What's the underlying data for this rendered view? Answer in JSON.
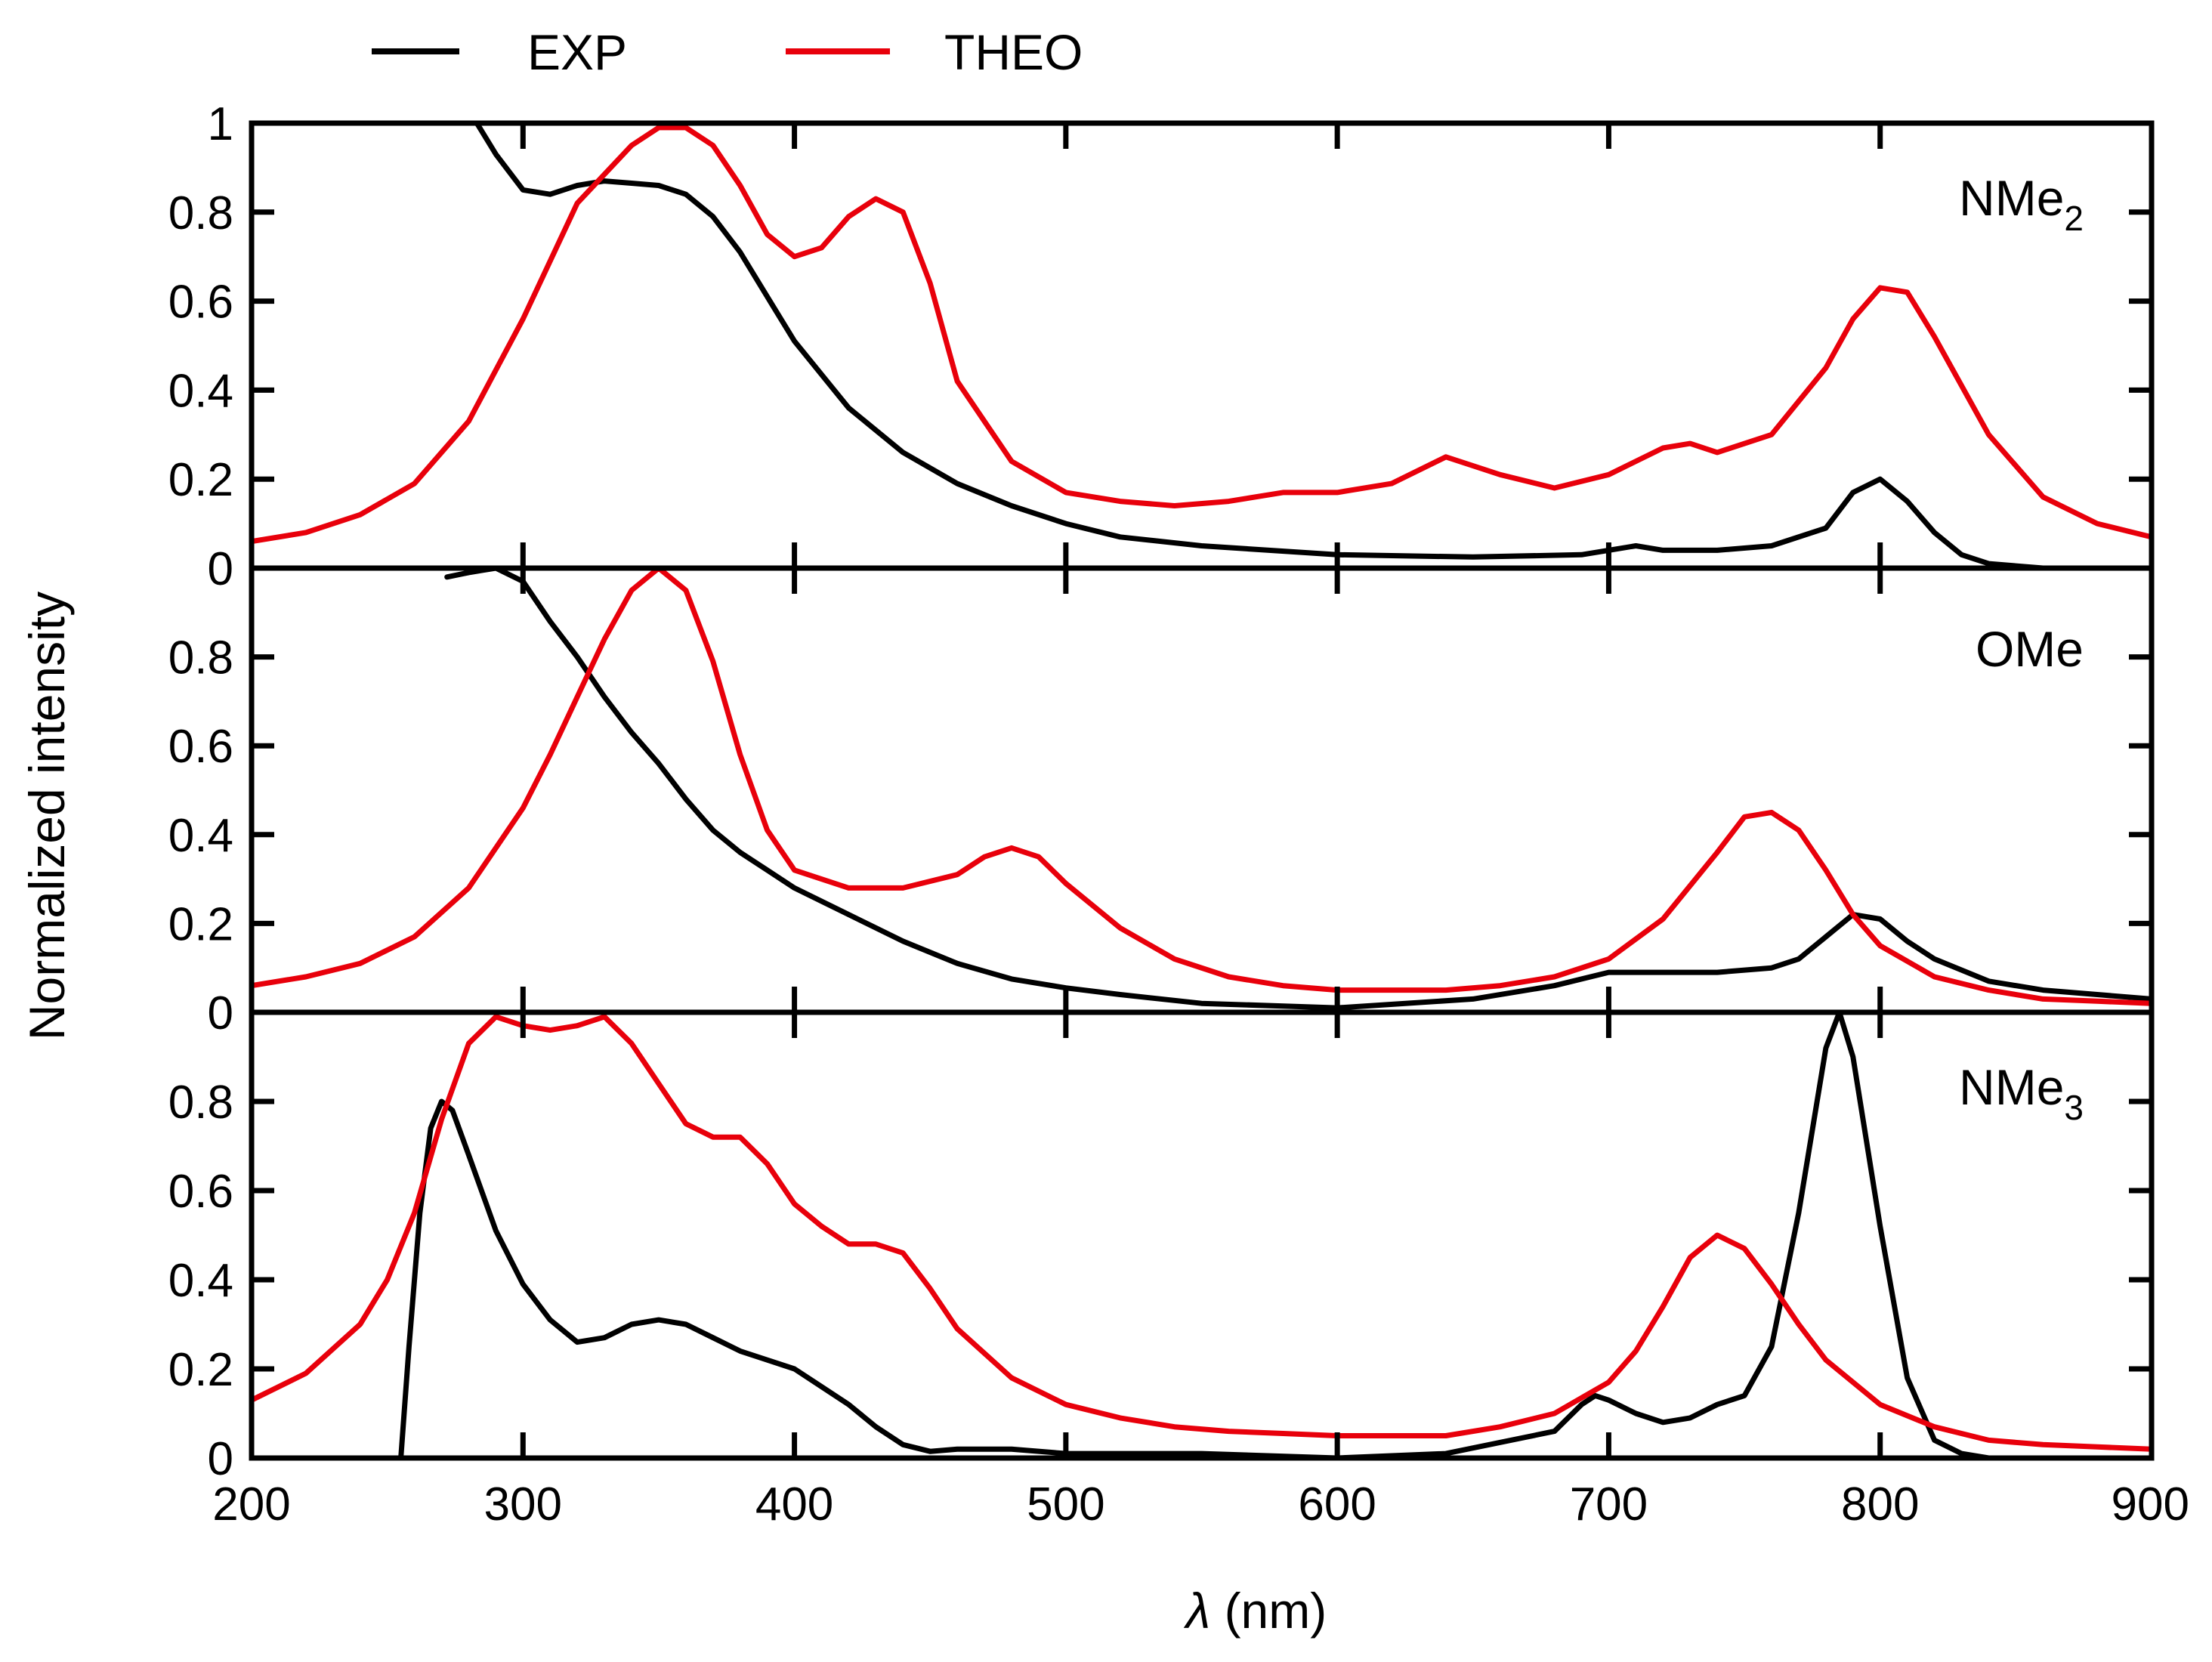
{
  "chart_data": {
    "type": "line",
    "title": "",
    "xlabel": "λ (nm)",
    "xlabel_symbol": "λ",
    "xlabel_unit": "(nm)",
    "ylabel": "Normalized intensity",
    "xlim": [
      200,
      900
    ],
    "x_ticks": [
      200,
      300,
      400,
      500,
      600,
      700,
      800,
      900
    ],
    "x_tick_labels": [
      "200",
      "300",
      "400",
      "500",
      "600",
      "700",
      "800",
      "900"
    ],
    "ylim": [
      0,
      1
    ],
    "grid": false,
    "legend_position": "top",
    "legend": [
      {
        "name": "EXP",
        "color": "#000000"
      },
      {
        "name": "THEO",
        "color": "#e8000b"
      }
    ],
    "panels": [
      {
        "label": "NMe",
        "label_sub": "2",
        "y_tick_labels": [
          "0",
          "0.2",
          "0.4",
          "0.6",
          "0.8",
          "1"
        ],
        "series": [
          {
            "name": "EXP",
            "color": "#000000",
            "x": [
              283,
              290,
              300,
              310,
              320,
              330,
              340,
              350,
              360,
              370,
              380,
              390,
              400,
              420,
              440,
              460,
              480,
              500,
              520,
              550,
              600,
              650,
              690,
              700,
              710,
              720,
              740,
              760,
              780,
              790,
              800,
              810,
              820,
              830,
              840,
              850,
              860,
              900
            ],
            "y": [
              1.0,
              0.93,
              0.85,
              0.84,
              0.86,
              0.87,
              0.865,
              0.86,
              0.84,
              0.79,
              0.71,
              0.61,
              0.51,
              0.36,
              0.26,
              0.19,
              0.14,
              0.1,
              0.07,
              0.05,
              0.03,
              0.025,
              0.03,
              0.04,
              0.05,
              0.04,
              0.04,
              0.05,
              0.09,
              0.17,
              0.2,
              0.15,
              0.08,
              0.03,
              0.01,
              0.005,
              0.0,
              0.0
            ]
          },
          {
            "name": "THEO",
            "color": "#e8000b",
            "x": [
              200,
              220,
              240,
              260,
              280,
              300,
              320,
              340,
              350,
              360,
              370,
              380,
              390,
              400,
              410,
              420,
              430,
              440,
              450,
              460,
              480,
              500,
              520,
              540,
              560,
              580,
              600,
              620,
              640,
              660,
              680,
              700,
              720,
              730,
              740,
              760,
              780,
              790,
              800,
              810,
              820,
              840,
              860,
              880,
              900
            ],
            "y": [
              0.06,
              0.08,
              0.12,
              0.19,
              0.33,
              0.56,
              0.82,
              0.95,
              0.99,
              0.99,
              0.95,
              0.86,
              0.75,
              0.7,
              0.72,
              0.79,
              0.83,
              0.8,
              0.64,
              0.42,
              0.24,
              0.17,
              0.15,
              0.14,
              0.15,
              0.17,
              0.17,
              0.19,
              0.25,
              0.21,
              0.18,
              0.21,
              0.27,
              0.28,
              0.26,
              0.3,
              0.45,
              0.56,
              0.63,
              0.62,
              0.52,
              0.3,
              0.16,
              0.1,
              0.07
            ]
          }
        ]
      },
      {
        "label": "OMe",
        "label_sub": "",
        "y_tick_labels": [
          "0",
          "0.2",
          "0.4",
          "0.6",
          "0.8",
          ""
        ],
        "series": [
          {
            "name": "EXP",
            "color": "#000000",
            "x": [
              272,
              280,
              290,
              300,
              310,
              320,
              330,
              340,
              350,
              360,
              370,
              380,
              400,
              420,
              440,
              460,
              480,
              500,
              520,
              550,
              600,
              650,
              680,
              700,
              720,
              740,
              760,
              770,
              780,
              790,
              800,
              810,
              820,
              840,
              860,
              880,
              900
            ],
            "y": [
              0.98,
              0.99,
              1.0,
              0.97,
              0.88,
              0.8,
              0.71,
              0.63,
              0.56,
              0.48,
              0.41,
              0.36,
              0.28,
              0.22,
              0.16,
              0.11,
              0.075,
              0.055,
              0.04,
              0.02,
              0.01,
              0.03,
              0.06,
              0.09,
              0.09,
              0.09,
              0.1,
              0.12,
              0.17,
              0.22,
              0.21,
              0.16,
              0.12,
              0.07,
              0.05,
              0.04,
              0.03
            ]
          },
          {
            "name": "THEO",
            "color": "#e8000b",
            "x": [
              200,
              220,
              240,
              260,
              280,
              300,
              310,
              320,
              330,
              340,
              350,
              360,
              370,
              380,
              390,
              400,
              420,
              440,
              460,
              470,
              480,
              490,
              500,
              520,
              540,
              560,
              580,
              600,
              640,
              660,
              680,
              700,
              720,
              740,
              750,
              760,
              770,
              780,
              790,
              800,
              820,
              840,
              860,
              880,
              900
            ],
            "y": [
              0.06,
              0.08,
              0.11,
              0.17,
              0.28,
              0.46,
              0.58,
              0.71,
              0.84,
              0.95,
              1.0,
              0.95,
              0.79,
              0.58,
              0.41,
              0.32,
              0.28,
              0.28,
              0.31,
              0.35,
              0.37,
              0.35,
              0.29,
              0.19,
              0.12,
              0.08,
              0.06,
              0.05,
              0.05,
              0.06,
              0.08,
              0.12,
              0.21,
              0.36,
              0.44,
              0.45,
              0.41,
              0.32,
              0.22,
              0.15,
              0.08,
              0.05,
              0.03,
              0.025,
              0.02
            ]
          }
        ]
      },
      {
        "label": "NMe",
        "label_sub": "3",
        "y_tick_labels": [
          "0",
          "0.2",
          "0.4",
          "0.6",
          "0.8",
          ""
        ],
        "series": [
          {
            "name": "EXP",
            "color": "#000000",
            "x": [
              255,
              258,
              262,
              266,
              270,
              274,
              280,
              290,
              300,
              310,
              320,
              330,
              340,
              350,
              360,
              370,
              380,
              390,
              400,
              410,
              420,
              430,
              440,
              450,
              460,
              480,
              500,
              550,
              600,
              640,
              680,
              690,
              695,
              700,
              710,
              720,
              730,
              740,
              750,
              760,
              770,
              780,
              785,
              790,
              800,
              810,
              820,
              830,
              840,
              900
            ],
            "y": [
              0.0,
              0.25,
              0.55,
              0.74,
              0.8,
              0.78,
              0.68,
              0.51,
              0.39,
              0.31,
              0.26,
              0.27,
              0.3,
              0.31,
              0.3,
              0.27,
              0.24,
              0.22,
              0.2,
              0.16,
              0.12,
              0.07,
              0.03,
              0.015,
              0.02,
              0.02,
              0.01,
              0.01,
              0.0,
              0.01,
              0.06,
              0.12,
              0.14,
              0.13,
              0.1,
              0.08,
              0.09,
              0.12,
              0.14,
              0.25,
              0.55,
              0.92,
              1.0,
              0.9,
              0.52,
              0.18,
              0.04,
              0.01,
              0.0,
              0.0
            ]
          },
          {
            "name": "THEO",
            "color": "#e8000b",
            "x": [
              200,
              220,
              240,
              250,
              260,
              270,
              280,
              290,
              300,
              310,
              320,
              330,
              340,
              350,
              360,
              370,
              380,
              390,
              400,
              410,
              420,
              430,
              440,
              450,
              460,
              480,
              500,
              520,
              540,
              560,
              580,
              600,
              640,
              660,
              680,
              700,
              710,
              720,
              730,
              740,
              750,
              760,
              770,
              780,
              800,
              820,
              840,
              860,
              880,
              900
            ],
            "y": [
              0.13,
              0.19,
              0.3,
              0.4,
              0.55,
              0.76,
              0.93,
              0.99,
              0.97,
              0.96,
              0.97,
              0.99,
              0.93,
              0.84,
              0.75,
              0.72,
              0.72,
              0.66,
              0.57,
              0.52,
              0.48,
              0.48,
              0.46,
              0.38,
              0.29,
              0.18,
              0.12,
              0.09,
              0.07,
              0.06,
              0.055,
              0.05,
              0.05,
              0.07,
              0.1,
              0.17,
              0.24,
              0.34,
              0.45,
              0.5,
              0.47,
              0.39,
              0.3,
              0.22,
              0.12,
              0.07,
              0.04,
              0.03,
              0.025,
              0.02
            ]
          }
        ]
      }
    ]
  }
}
